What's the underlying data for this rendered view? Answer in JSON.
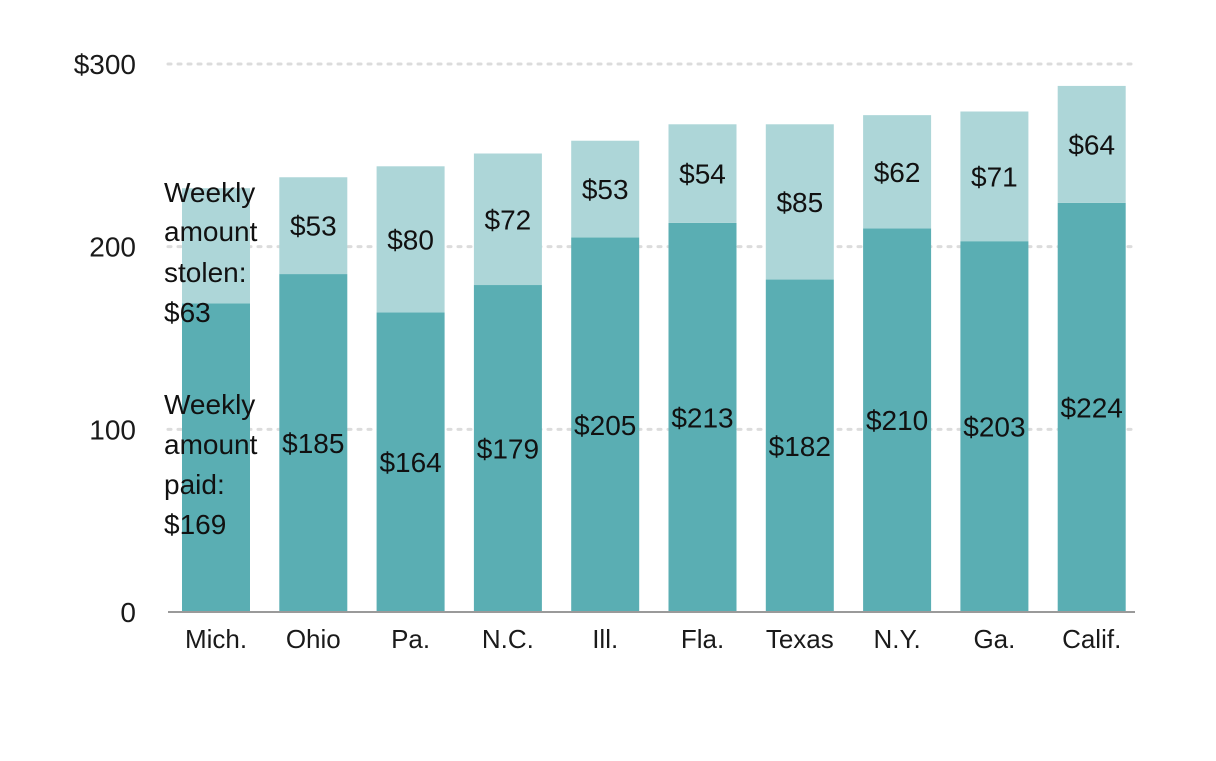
{
  "chart_data": {
    "type": "bar",
    "stacked": true,
    "title": "",
    "xlabel": "",
    "ylabel": "",
    "ylim": [
      0,
      300
    ],
    "yticks": [
      0,
      100,
      200,
      300
    ],
    "ytick_labels": [
      "0",
      "100",
      "200",
      "$300"
    ],
    "grid": true,
    "legend": "none",
    "categories": [
      "Mich.",
      "Ohio",
      "Pa.",
      "N.C.",
      "Ill.",
      "Fla.",
      "Texas",
      "N.Y.",
      "Ga.",
      "Calif."
    ],
    "series": [
      {
        "key": "paid",
        "color": "#5aaeb3",
        "values": [
          169,
          185,
          164,
          179,
          205,
          213,
          182,
          210,
          203,
          224
        ],
        "labels": [
          "",
          "$185",
          "$164",
          "$179",
          "$205",
          "$213",
          "$182",
          "$210",
          "$203",
          "$224"
        ]
      },
      {
        "key": "stolen",
        "color": "#add6d8",
        "values": [
          63,
          53,
          80,
          72,
          53,
          54,
          85,
          62,
          71,
          64
        ],
        "labels": [
          "",
          "$53",
          "$80",
          "$72",
          "$53",
          "$54",
          "$85",
          "$62",
          "$71",
          "$64"
        ]
      }
    ],
    "annotations": {
      "stolen": [
        "Weekly",
        "amount",
        "stolen:",
        "$63"
      ],
      "paid": [
        "Weekly",
        "amount",
        "paid:",
        "$169"
      ]
    }
  }
}
